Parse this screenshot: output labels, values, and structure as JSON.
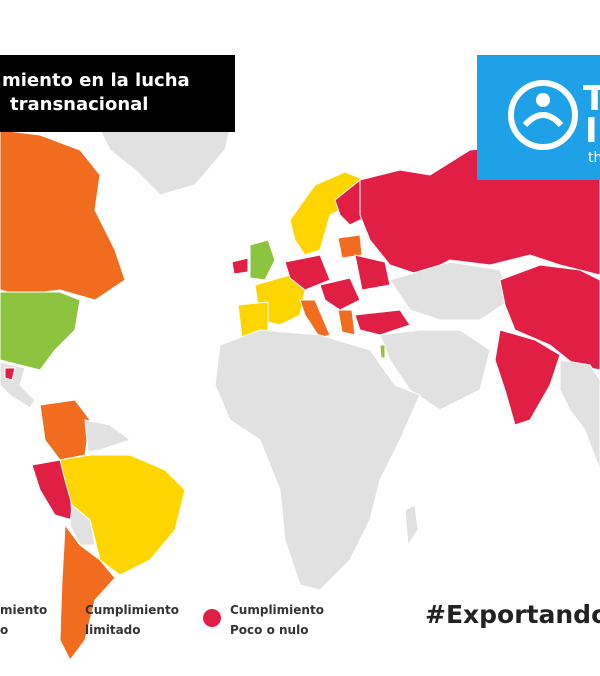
{
  "title": {
    "lines": [
      "miento en la lucha",
      "transnacional"
    ]
  },
  "logo": {
    "letters": [
      "T",
      "I"
    ],
    "tagline": "th"
  },
  "legend": [
    {
      "lines": [
        "miento",
        "o"
      ]
    },
    {
      "lines": [
        "Cumplimiento",
        "limitado"
      ]
    },
    {
      "lines": [
        "Cumplimiento",
        "Poco o nulo"
      ]
    }
  ],
  "hashtag": "#Exportando"
}
